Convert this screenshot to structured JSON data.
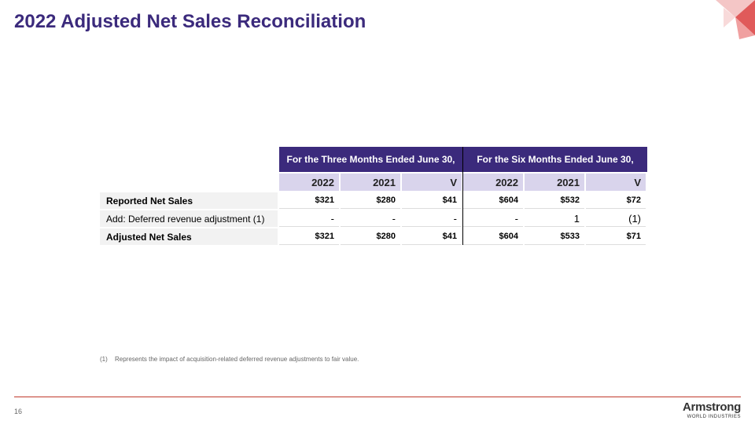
{
  "header": {
    "title": "2022 Adjusted Net Sales Reconciliation"
  },
  "table": {
    "group_headers": [
      "For the Three Months Ended June 30,",
      "For the Six Months Ended June 30,"
    ],
    "columns": [
      "2022",
      "2021",
      "V",
      "2022",
      "2021",
      "V"
    ],
    "rows": [
      [
        "Reported Net Sales",
        "$321",
        "$280",
        "$41",
        "$604",
        "$532",
        "$72"
      ],
      [
        "Add: Deferred revenue adjustment (1)",
        "-",
        "-",
        "-",
        "-",
        "1",
        "(1)"
      ],
      [
        "Adjusted Net Sales",
        "$321",
        "$280",
        "$41",
        "$604",
        "$533",
        "$71"
      ]
    ]
  },
  "footnote": {
    "marker": "(1)",
    "text": "Represents the impact of acquisition-related deferred revenue adjustments to fair value."
  },
  "footer": {
    "page_number": "16",
    "logo": "Armstrong",
    "logo_subtitle": "WORLD INDUSTRIES"
  }
}
